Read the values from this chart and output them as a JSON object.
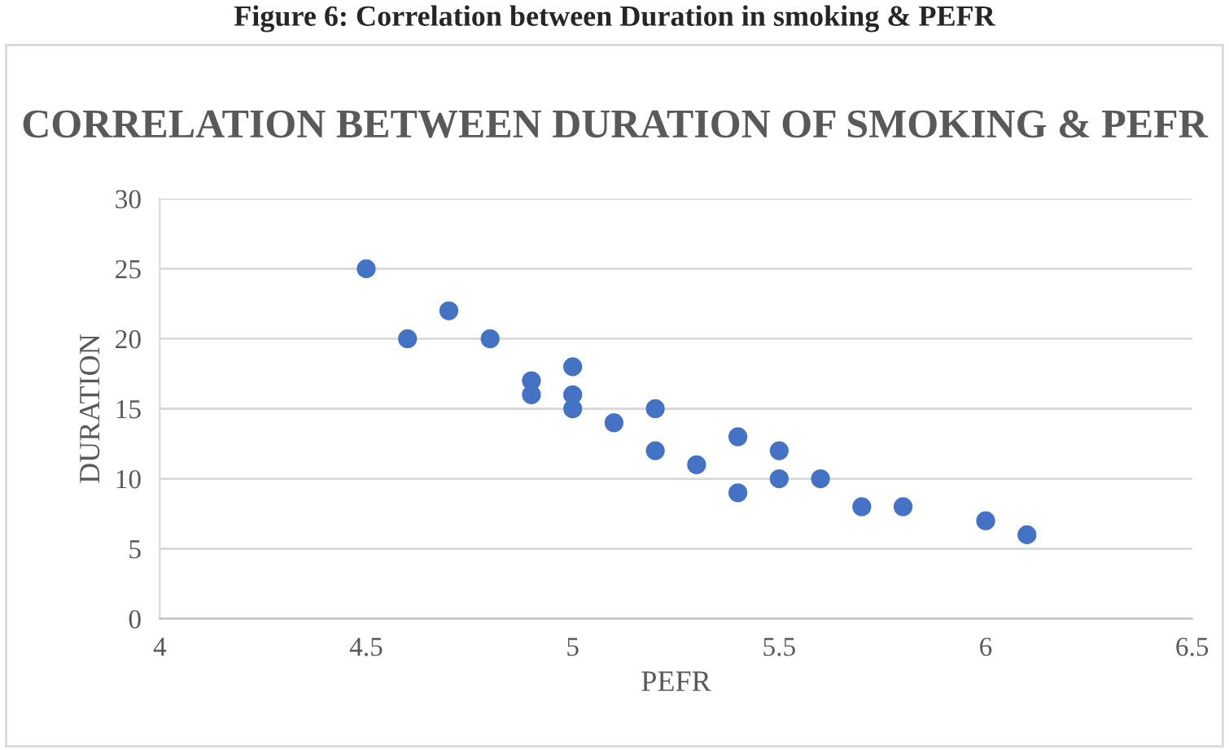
{
  "chart_data": {
    "type": "scatter",
    "title": "CORRELATION BETWEEN DURATION OF SMOKING & PEFR",
    "xlabel": "PEFR",
    "ylabel": "DURATION",
    "annotations": [
      "Figure 6: Correlation between Duration in smoking & PEFR"
    ],
    "x": [
      4.5,
      4.6,
      4.7,
      4.8,
      4.9,
      4.9,
      5.0,
      5.0,
      5.0,
      5.1,
      5.2,
      5.2,
      5.3,
      5.4,
      5.4,
      5.5,
      5.5,
      5.6,
      5.7,
      5.8,
      6.0,
      6.1
    ],
    "series": [
      {
        "color": "#4472c4",
        "values": [
          25,
          20,
          22,
          20,
          17,
          16,
          18,
          16,
          15,
          14,
          15,
          12,
          11,
          13,
          9,
          12,
          10,
          10,
          8,
          8,
          7,
          6
        ]
      }
    ],
    "xlim": [
      4,
      6.5
    ],
    "xticks": [
      4,
      4.5,
      5,
      5.5,
      6,
      6.5
    ],
    "ylim": [
      0,
      30
    ],
    "yticks": [
      0,
      5,
      10,
      15,
      20,
      25,
      30
    ],
    "grid": "y",
    "marker": "circle",
    "legend": false
  }
}
